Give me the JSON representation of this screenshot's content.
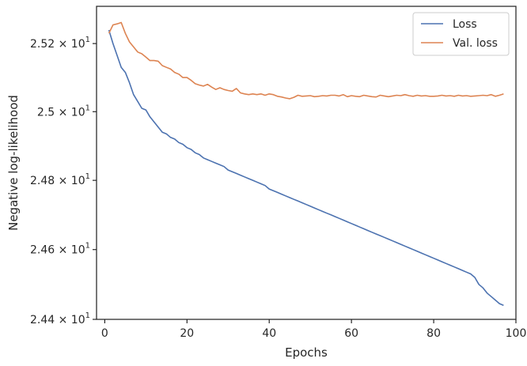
{
  "chart_data": {
    "type": "line",
    "title": "",
    "xlabel": "Epochs",
    "ylabel": "Negative log-likelihood",
    "xlim": [
      -2,
      100
    ],
    "ylim": [
      24.4,
      25.31
    ],
    "y_scale": "log",
    "grid": false,
    "legend_position": "top-right",
    "x_ticks": [
      0,
      20,
      40,
      60,
      80,
      100
    ],
    "x_tick_labels": [
      "0",
      "20",
      "40",
      "60",
      "80",
      "100"
    ],
    "y_ticks": [
      24.4,
      24.6,
      24.8,
      25.0,
      25.2
    ],
    "y_tick_mantissas": [
      "2.44",
      "2.46",
      "2.48",
      "2.5",
      "2.52"
    ],
    "y_tick_base_text": "× 10",
    "y_tick_exponent": "1",
    "series": [
      {
        "name": "Loss",
        "color": "#4c72b0",
        "x": [
          1,
          2,
          3,
          4,
          5,
          6,
          7,
          8,
          9,
          10,
          11,
          12,
          13,
          14,
          15,
          16,
          17,
          18,
          19,
          20,
          21,
          22,
          23,
          24,
          25,
          26,
          27,
          28,
          29,
          30,
          31,
          32,
          33,
          34,
          35,
          36,
          37,
          38,
          39,
          40,
          41,
          42,
          43,
          44,
          45,
          46,
          47,
          48,
          49,
          50,
          51,
          52,
          53,
          54,
          55,
          56,
          57,
          58,
          59,
          60,
          61,
          62,
          63,
          64,
          65,
          66,
          67,
          68,
          69,
          70,
          71,
          72,
          73,
          74,
          75,
          76,
          77,
          78,
          79,
          80,
          81,
          82,
          83,
          84,
          85,
          86,
          87,
          88,
          89,
          90,
          91,
          92,
          93,
          94,
          95,
          96,
          97
        ],
        "y": [
          25.24,
          25.2,
          25.165,
          25.13,
          25.115,
          25.085,
          25.05,
          25.03,
          25.01,
          25.005,
          24.985,
          24.97,
          24.955,
          24.94,
          24.935,
          24.925,
          24.92,
          24.91,
          24.905,
          24.895,
          24.89,
          24.88,
          24.875,
          24.865,
          24.86,
          24.855,
          24.85,
          24.845,
          24.84,
          24.83,
          24.825,
          24.82,
          24.815,
          24.81,
          24.805,
          24.8,
          24.795,
          24.79,
          24.785,
          24.775,
          24.77,
          24.765,
          24.76,
          24.755,
          24.75,
          24.745,
          24.74,
          24.735,
          24.73,
          24.725,
          24.72,
          24.715,
          24.71,
          24.705,
          24.7,
          24.695,
          24.69,
          24.685,
          24.68,
          24.675,
          24.67,
          24.665,
          24.66,
          24.655,
          24.65,
          24.645,
          24.64,
          24.635,
          24.63,
          24.625,
          24.62,
          24.615,
          24.61,
          24.605,
          24.6,
          24.595,
          24.59,
          24.585,
          24.58,
          24.575,
          24.57,
          24.565,
          24.56,
          24.555,
          24.55,
          24.545,
          24.54,
          24.535,
          24.53,
          24.52,
          24.5,
          24.49,
          24.475,
          24.465,
          24.455,
          24.445,
          24.44
        ]
      },
      {
        "name": "Val. loss",
        "color": "#dd8452",
        "x": [
          1,
          2,
          3,
          4,
          5,
          6,
          7,
          8,
          9,
          10,
          11,
          12,
          13,
          14,
          15,
          16,
          17,
          18,
          19,
          20,
          21,
          22,
          23,
          24,
          25,
          26,
          27,
          28,
          29,
          30,
          31,
          32,
          33,
          34,
          35,
          36,
          37,
          38,
          39,
          40,
          41,
          42,
          43,
          44,
          45,
          46,
          47,
          48,
          49,
          50,
          51,
          52,
          53,
          54,
          55,
          56,
          57,
          58,
          59,
          60,
          61,
          62,
          63,
          64,
          65,
          66,
          67,
          68,
          69,
          70,
          71,
          72,
          73,
          74,
          75,
          76,
          77,
          78,
          79,
          80,
          81,
          82,
          83,
          84,
          85,
          86,
          87,
          88,
          89,
          90,
          91,
          92,
          93,
          94,
          95,
          96,
          97
        ],
        "y": [
          25.23,
          25.255,
          25.258,
          25.262,
          25.23,
          25.205,
          25.19,
          25.175,
          25.17,
          25.16,
          25.15,
          25.15,
          25.148,
          25.135,
          25.13,
          25.125,
          25.115,
          25.11,
          25.1,
          25.1,
          25.092,
          25.082,
          25.078,
          25.075,
          25.08,
          25.072,
          25.065,
          25.07,
          25.065,
          25.062,
          25.06,
          25.068,
          25.055,
          25.052,
          25.05,
          25.052,
          25.05,
          25.052,
          25.048,
          25.052,
          25.05,
          25.045,
          25.043,
          25.04,
          25.038,
          25.042,
          25.048,
          25.045,
          25.046,
          25.047,
          25.044,
          25.045,
          25.047,
          25.046,
          25.048,
          25.048,
          25.046,
          25.05,
          25.044,
          25.047,
          25.045,
          25.044,
          25.048,
          25.046,
          25.044,
          25.043,
          25.048,
          25.046,
          25.044,
          25.046,
          25.048,
          25.047,
          25.05,
          25.047,
          25.045,
          25.048,
          25.046,
          25.047,
          25.045,
          25.045,
          25.046,
          25.048,
          25.046,
          25.047,
          25.045,
          25.048,
          25.046,
          25.047,
          25.045,
          25.046,
          25.047,
          25.048,
          25.047,
          25.05,
          25.045,
          25.048,
          25.052
        ]
      }
    ]
  }
}
